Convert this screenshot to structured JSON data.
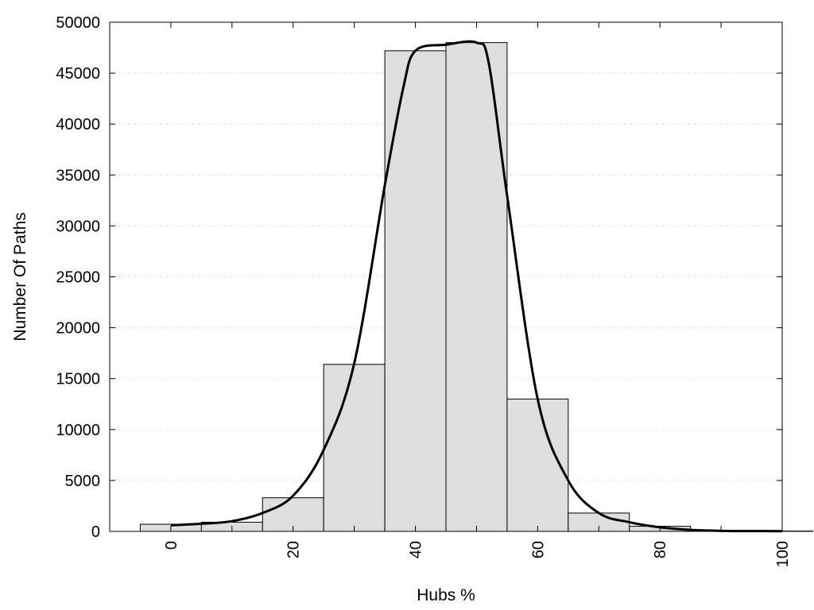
{
  "chart_data": {
    "type": "bar",
    "xlabel": "Hubs %",
    "ylabel": "Number Of Paths",
    "xlim": [
      -10,
      100
    ],
    "ylim": [
      0,
      50000
    ],
    "x_ticks": [
      "0",
      "20",
      "40",
      "60",
      "80",
      "100"
    ],
    "y_ticks": [
      "0",
      "5000",
      "10000",
      "15000",
      "20000",
      "25000",
      "30000",
      "35000",
      "40000",
      "45000",
      "50000"
    ],
    "grid": "horizontal dotted",
    "bins": [
      {
        "center": 0,
        "value": 700
      },
      {
        "center": 10,
        "value": 900
      },
      {
        "center": 20,
        "value": 3300
      },
      {
        "center": 30,
        "value": 16400
      },
      {
        "center": 40,
        "value": 47200
      },
      {
        "center": 50,
        "value": 48000
      },
      {
        "center": 60,
        "value": 13000
      },
      {
        "center": 70,
        "value": 1800
      },
      {
        "center": 80,
        "value": 500
      },
      {
        "center": 90,
        "value": 50
      },
      {
        "center": 100,
        "value": 30
      }
    ],
    "curve": {
      "x": [
        0,
        5,
        10,
        15,
        20,
        25,
        30,
        35,
        38,
        40,
        45,
        50,
        52,
        55,
        60,
        65,
        70,
        75,
        80,
        85,
        90,
        95,
        100
      ],
      "y": [
        600,
        750,
        1000,
        1800,
        3500,
        8000,
        16500,
        34000,
        43500,
        47200,
        47800,
        48000,
        46000,
        33000,
        13000,
        5000,
        1800,
        900,
        400,
        150,
        50,
        30,
        20
      ]
    },
    "colors": {
      "bar_fill": "#dedede",
      "bar_stroke": "#000000",
      "grid": "#c8c8c8",
      "curve": "#000000"
    }
  }
}
